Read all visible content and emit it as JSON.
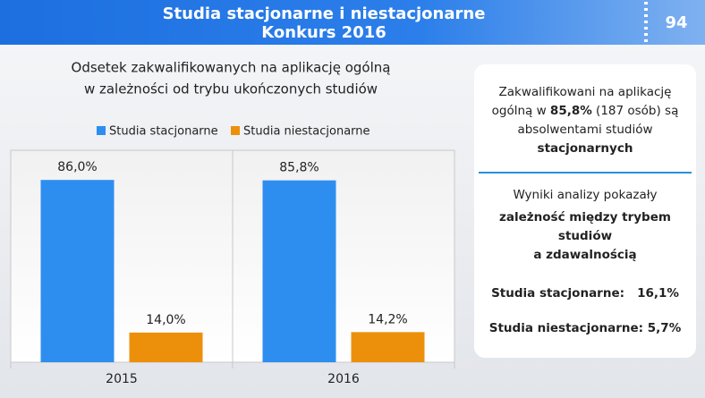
{
  "header": {
    "title": [
      "Studia stacjonarne i niestacjonarne",
      "Konkurs 2016"
    ],
    "page_number": "94"
  },
  "chart_data": {
    "type": "bar",
    "title": [
      "Odsetek zakwalifikowanych na aplikację ogólną",
      "w zależności od trybu ukończonych studiów"
    ],
    "categories": [
      "2015",
      "2016"
    ],
    "series": [
      {
        "name": "Studia stacjonarne",
        "color": "#2e8ef0",
        "values": [
          86.0,
          85.8
        ],
        "value_labels": [
          "86,0%",
          "85,8%"
        ]
      },
      {
        "name": "Studia niestacjonarne",
        "color": "#ec900c",
        "values": [
          14.0,
          14.2
        ],
        "value_labels": [
          "14,0%",
          "14,2%"
        ]
      }
    ],
    "ylim": [
      0,
      100
    ],
    "legend": "top"
  },
  "panel": {
    "box1": [
      [
        {
          "text": "Zakwalifikowani na aplikację"
        }
      ],
      [
        {
          "text": "ogólną w "
        },
        {
          "text": "85,8%",
          "bold": true
        },
        {
          "text": " (187 osób) są"
        }
      ],
      [
        {
          "text": "absolwentami studiów"
        }
      ],
      [
        {
          "text": "stacjonarnych",
          "bold": true
        }
      ]
    ],
    "box2": [
      [
        {
          "text": "Wyniki analizy pokazały"
        }
      ],
      [
        {
          "text": "zależność między trybem",
          "bold": true
        }
      ],
      [
        {
          "text": "studiów",
          "bold": true
        }
      ],
      [
        {
          "text": "a zdawalnością",
          "bold": true
        }
      ],
      [
        {
          "text": "Studia stacjonarne:   16,1%",
          "bold": true
        }
      ],
      [
        {
          "text": "Studia niestacjonarne: 5,7%",
          "bold": true
        }
      ]
    ]
  }
}
